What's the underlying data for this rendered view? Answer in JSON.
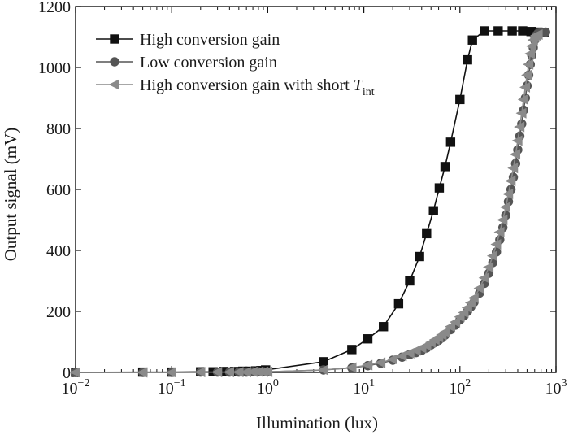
{
  "chart_data": {
    "type": "line",
    "xlabel": "Illumination (lux)",
    "ylabel": "Output signal (mV)",
    "x_scale": "log",
    "xlim": [
      0.01,
      1000
    ],
    "ylim": [
      0,
      1200
    ],
    "x_ticks": [
      {
        "base": "10",
        "exp": "−2"
      },
      {
        "base": "10",
        "exp": "−1"
      },
      {
        "base": "10",
        "exp": "0"
      },
      {
        "base": "10",
        "exp": "1"
      },
      {
        "base": "10",
        "exp": "2"
      },
      {
        "base": "10",
        "exp": "3"
      }
    ],
    "x_tick_values": [
      0.01,
      0.1,
      1,
      10,
      100,
      1000
    ],
    "y_ticks": [
      "0",
      "200",
      "400",
      "600",
      "800",
      "1000",
      "1200"
    ],
    "y_tick_values": [
      0,
      200,
      400,
      600,
      800,
      1000,
      1200
    ],
    "grid": false,
    "legend_position": "top-left",
    "series": [
      {
        "name": "High conversion gain",
        "name_var": "",
        "name_sub": "",
        "marker": "square",
        "color": "#111111",
        "x": [
          0.01,
          0.05,
          0.1,
          0.2,
          0.27,
          0.35,
          0.45,
          0.55,
          0.65,
          0.75,
          0.85,
          0.95,
          3.8,
          7.5,
          11,
          16,
          23,
          30,
          38,
          45,
          53,
          61,
          70,
          80,
          100,
          120,
          135,
          180,
          250,
          350,
          450,
          550,
          650,
          750
        ],
        "y": [
          0,
          1,
          1,
          2,
          2,
          3,
          3,
          4,
          4,
          5,
          6,
          8,
          35,
          75,
          110,
          150,
          225,
          300,
          380,
          455,
          530,
          605,
          675,
          755,
          895,
          1025,
          1090,
          1120,
          1120,
          1120,
          1120,
          1118,
          1116,
          1114
        ]
      },
      {
        "name": "Low conversion gain",
        "name_var": "",
        "name_sub": "",
        "marker": "circle",
        "color": "#555555",
        "x": [
          0.01,
          0.05,
          0.1,
          0.2,
          0.3,
          0.4,
          0.5,
          0.6,
          0.7,
          0.8,
          0.9,
          1,
          3.8,
          7.5,
          11,
          15,
          20,
          25,
          30,
          35,
          40,
          45,
          50,
          55,
          60,
          65,
          70,
          80,
          90,
          100,
          110,
          120,
          130,
          140,
          160,
          180,
          200,
          220,
          240,
          260,
          280,
          300,
          320,
          340,
          360,
          380,
          400,
          420,
          440,
          460,
          480,
          500,
          520,
          540,
          560,
          580,
          600,
          620,
          650,
          700,
          780
        ],
        "y": [
          0,
          0,
          0,
          1,
          1,
          1,
          1,
          1,
          2,
          2,
          2,
          2,
          8,
          15,
          22,
          30,
          40,
          50,
          58,
          65,
          72,
          80,
          90,
          98,
          105,
          113,
          122,
          140,
          155,
          172,
          185,
          200,
          215,
          230,
          260,
          292,
          325,
          360,
          395,
          435,
          475,
          515,
          560,
          600,
          640,
          685,
          730,
          775,
          815,
          860,
          900,
          940,
          975,
          1010,
          1040,
          1065,
          1090,
          1105,
          1112,
          1115,
          1116
        ]
      },
      {
        "name": "High conversion gain with short ",
        "name_var": "T",
        "name_sub": "int",
        "marker": "triangle-left",
        "color": "#8a8a8a",
        "x": [
          0.01,
          0.05,
          0.1,
          0.2,
          0.3,
          0.4,
          0.5,
          0.6,
          0.7,
          0.8,
          0.9,
          1,
          3.8,
          7.5,
          11,
          15,
          20,
          25,
          30,
          35,
          40,
          45,
          50,
          55,
          60,
          65,
          70,
          80,
          90,
          100,
          110,
          120,
          130,
          140,
          160,
          180,
          200,
          220,
          240,
          260,
          280,
          300,
          320,
          340,
          360,
          380,
          400,
          420,
          440,
          460,
          480,
          500,
          520,
          540,
          560,
          580,
          600,
          620,
          650
        ],
        "y": [
          0,
          0,
          0,
          1,
          1,
          1,
          1,
          1,
          2,
          2,
          2,
          2,
          8,
          16,
          24,
          32,
          43,
          54,
          63,
          72,
          80,
          88,
          98,
          107,
          115,
          123,
          132,
          150,
          165,
          182,
          196,
          212,
          228,
          244,
          276,
          310,
          345,
          382,
          420,
          460,
          500,
          542,
          585,
          628,
          670,
          715,
          760,
          805,
          850,
          895,
          935,
          975,
          1010,
          1045,
          1070,
          1090,
          1100,
          1105,
          1108
        ]
      }
    ]
  }
}
